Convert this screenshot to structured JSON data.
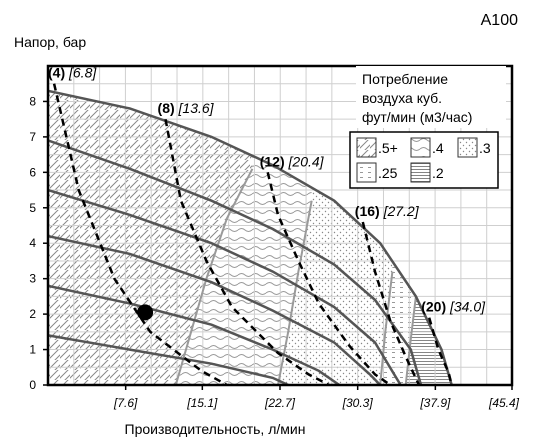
{
  "chart_data": {
    "type": "line",
    "model": "A100",
    "ylabel": "Напор, бар",
    "xlabel": "Производительность, л/мин",
    "xlim": [
      0,
      45.4
    ],
    "ylim": [
      0,
      9
    ],
    "y_ticks": [
      "0",
      "1",
      "2",
      "3",
      "4",
      "5",
      "6",
      "7",
      "8"
    ],
    "x_ticks": [
      {
        "v": 7.6,
        "label": "[7.6]"
      },
      {
        "v": 15.1,
        "label": "[15.1]"
      },
      {
        "v": 22.7,
        "label": "[22.7]"
      },
      {
        "v": 30.3,
        "label": "[30.3]"
      },
      {
        "v": 37.9,
        "label": "[37.9]"
      },
      {
        "v": 45.4,
        "label": "[45.4]"
      }
    ],
    "grid": true,
    "flow_curves": [
      {
        "label_bold": "(4)",
        "label_italic": "[6.8]",
        "points": [
          [
            0.6,
            8.5
          ],
          [
            3,
            5.5
          ],
          [
            6.5,
            3.0
          ],
          [
            10,
            1.5
          ],
          [
            15,
            0.4
          ],
          [
            17.5,
            0
          ]
        ]
      },
      {
        "label_bold": "(8)",
        "label_italic": "[13.6]",
        "points": [
          [
            11.5,
            7.5
          ],
          [
            13,
            5.2
          ],
          [
            15.5,
            3.5
          ],
          [
            18,
            2.2
          ],
          [
            22.5,
            0.9
          ],
          [
            25.5,
            0.3
          ],
          [
            27.5,
            0
          ]
        ]
      },
      {
        "label_bold": "(12)",
        "label_italic": "[20.4]",
        "points": [
          [
            21.5,
            6.0
          ],
          [
            22.5,
            4.8
          ],
          [
            24.5,
            3.5
          ],
          [
            26.5,
            2.3
          ],
          [
            29.5,
            1.1
          ],
          [
            32,
            0.3
          ],
          [
            33.5,
            0
          ]
        ]
      },
      {
        "label_bold": "(16)",
        "label_italic": "[27.2]",
        "points": [
          [
            30.8,
            4.6
          ],
          [
            32,
            3.2
          ],
          [
            33.5,
            1.8
          ],
          [
            35,
            0.8
          ],
          [
            36.3,
            0
          ]
        ]
      },
      {
        "label_bold": "(20)",
        "label_italic": "[34.0]",
        "points": [
          [
            37.3,
            1.9
          ],
          [
            38.2,
            1.0
          ],
          [
            39.2,
            0.35
          ],
          [
            39.5,
            0
          ]
        ]
      }
    ],
    "pressure_curves": [
      {
        "points": [
          [
            0,
            8.3
          ],
          [
            8,
            7.8
          ],
          [
            16,
            7.0
          ],
          [
            22,
            6.2
          ],
          [
            28,
            5.2
          ],
          [
            32.5,
            4.0
          ],
          [
            36,
            2.5
          ],
          [
            38.5,
            1.0
          ],
          [
            39.5,
            0
          ]
        ]
      },
      {
        "points": [
          [
            0,
            6.9
          ],
          [
            8,
            6.1
          ],
          [
            16,
            5.2
          ],
          [
            22,
            4.4
          ],
          [
            28,
            3.4
          ],
          [
            32,
            2.4
          ],
          [
            35.5,
            1.0
          ],
          [
            36.5,
            0
          ]
        ]
      },
      {
        "points": [
          [
            0,
            5.5
          ],
          [
            8,
            4.8
          ],
          [
            16,
            4.0
          ],
          [
            22,
            3.2
          ],
          [
            28,
            2.2
          ],
          [
            32,
            1.2
          ],
          [
            34.5,
            0
          ]
        ]
      },
      {
        "points": [
          [
            0,
            4.2
          ],
          [
            8,
            3.7
          ],
          [
            16,
            2.9
          ],
          [
            22,
            2.1
          ],
          [
            28,
            1.2
          ],
          [
            31.5,
            0.3
          ],
          [
            32.5,
            0
          ]
        ]
      },
      {
        "points": [
          [
            0,
            2.8
          ],
          [
            8,
            2.3
          ],
          [
            16,
            1.7
          ],
          [
            22,
            1.0
          ],
          [
            26.5,
            0.4
          ],
          [
            28.5,
            0
          ]
        ]
      },
      {
        "points": [
          [
            0,
            1.4
          ],
          [
            8,
            1.0
          ],
          [
            16,
            0.6
          ],
          [
            22,
            0.2
          ],
          [
            23.5,
            0
          ]
        ]
      }
    ],
    "zone_boundaries": [
      {
        "points": [
          [
            12.5,
            0
          ],
          [
            14,
            1.5
          ],
          [
            15.5,
            3.0
          ],
          [
            17.5,
            4.7
          ],
          [
            20,
            6.1
          ]
        ]
      },
      {
        "points": [
          [
            22.5,
            0
          ],
          [
            23.5,
            1.5
          ],
          [
            24.5,
            3.2
          ],
          [
            25.8,
            5.2
          ]
        ]
      },
      {
        "points": [
          [
            32.5,
            0
          ],
          [
            33,
            1.5
          ],
          [
            33.7,
            3.2
          ]
        ]
      },
      {
        "points": [
          [
            35,
            0
          ],
          [
            35.5,
            1.3
          ],
          [
            36,
            2.5
          ]
        ]
      }
    ],
    "operating_point": {
      "x": 9.5,
      "y": 2.05
    },
    "legend": {
      "title": [
        "Потребление",
        "воздуха куб.",
        "фут/мин (м3/час)"
      ],
      "placement": "top-right",
      "entries": [
        ".5+",
        ".4",
        ".3",
        ".25",
        ".2"
      ]
    }
  }
}
